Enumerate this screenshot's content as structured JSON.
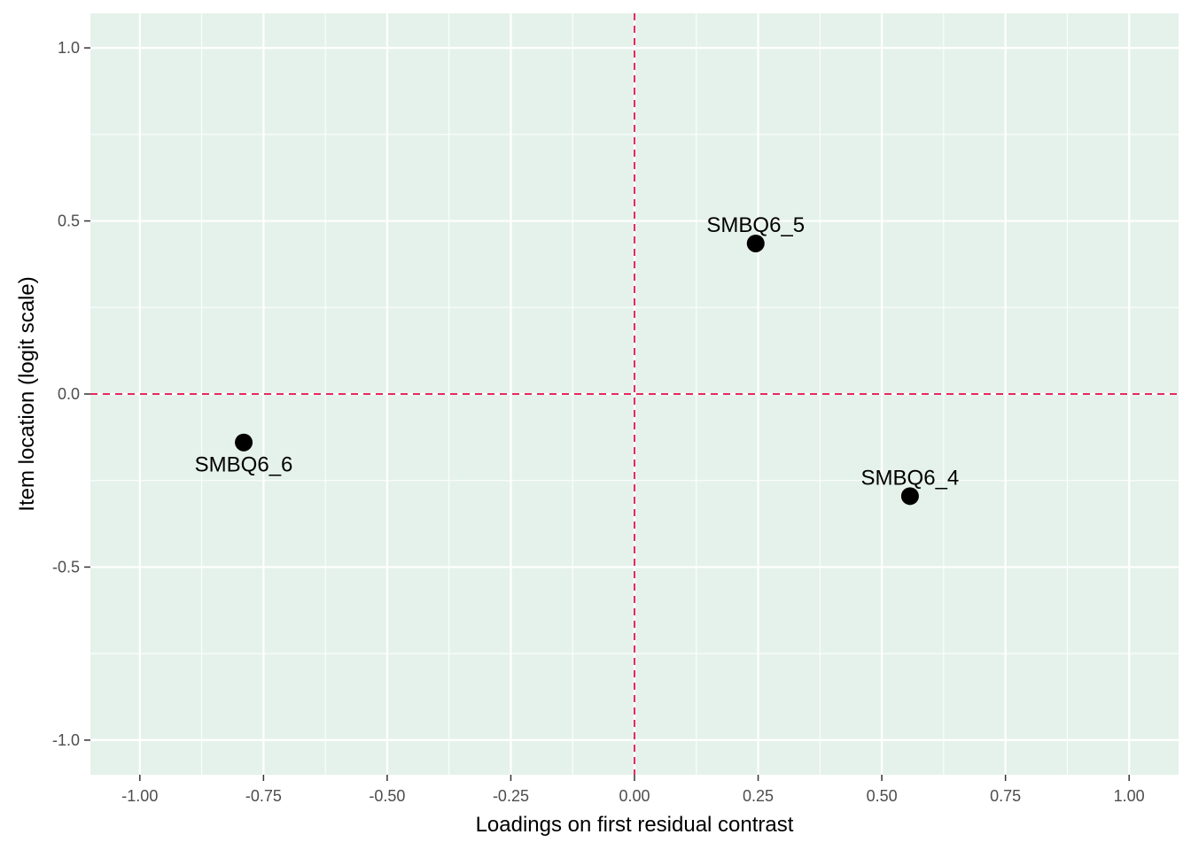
{
  "chart_data": {
    "type": "scatter",
    "title": "",
    "xlabel": "Loadings on first residual contrast",
    "ylabel": "Item location (logit scale)",
    "xlim": [
      -1.1,
      1.1
    ],
    "ylim": [
      -1.1,
      1.1
    ],
    "x_ticks": [
      -1.0,
      -0.75,
      -0.5,
      -0.25,
      0.0,
      0.25,
      0.5,
      0.75,
      1.0
    ],
    "x_tick_labels": [
      "-1.00",
      "-0.75",
      "-0.50",
      "-0.25",
      "0.00",
      "0.25",
      "0.50",
      "0.75",
      "1.00"
    ],
    "y_ticks": [
      -1.0,
      -0.5,
      0.0,
      0.5,
      1.0
    ],
    "y_tick_labels": [
      "-1.0",
      "-0.5",
      "0.0",
      "0.5",
      "1.0"
    ],
    "grid": true,
    "reference_lines": {
      "x": 0,
      "y": 0,
      "style": "dashed",
      "color": "#e8295f"
    },
    "panel_background": "#e5f2eb",
    "points": [
      {
        "label": "SMBQ6_5",
        "x": 0.245,
        "y": 0.435,
        "label_position": "above"
      },
      {
        "label": "SMBQ6_6",
        "x": -0.79,
        "y": -0.14,
        "label_position": "below"
      },
      {
        "label": "SMBQ6_4",
        "x": 0.557,
        "y": -0.295,
        "label_position": "above"
      }
    ],
    "point_color": "#000000"
  }
}
